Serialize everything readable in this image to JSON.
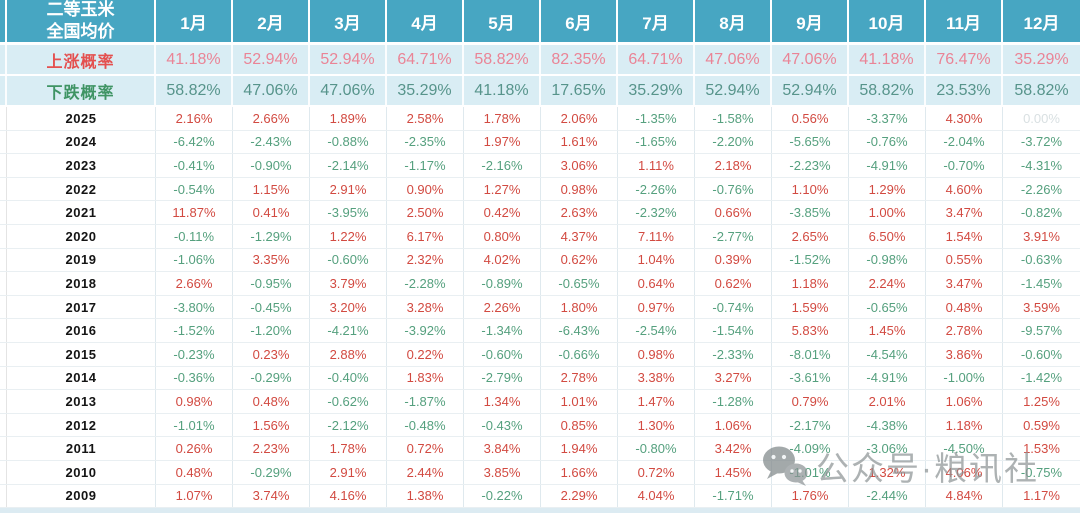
{
  "table": {
    "corner_line1": "二等玉米",
    "corner_line2": "全国均价",
    "rise_label": "上涨概率",
    "fall_label": "下跌概率"
  },
  "watermark": {
    "icon": "wechat-icon",
    "text": "公众号·粮讯社"
  },
  "colors": {
    "header_bg": "#47a6c2",
    "prob_bg": "#d9edf4",
    "rise_label": "#e4504f",
    "rise_value": "#ea8496",
    "fall_label": "#3f9464",
    "fall_value": "#57948b",
    "positive": "#d24a41",
    "negative": "#55a07e",
    "zero_faded": "#d9e0e2"
  },
  "chart_data": {
    "type": "table",
    "columns": [
      "1月",
      "2月",
      "3月",
      "4月",
      "5月",
      "6月",
      "7月",
      "8月",
      "9月",
      "10月",
      "11月",
      "12月"
    ],
    "rise_probability": [
      41.18,
      52.94,
      52.94,
      64.71,
      58.82,
      82.35,
      64.71,
      47.06,
      47.06,
      41.18,
      76.47,
      35.29
    ],
    "fall_probability": [
      58.82,
      47.06,
      47.06,
      35.29,
      41.18,
      17.65,
      35.29,
      52.94,
      52.94,
      58.82,
      23.53,
      58.82
    ],
    "unit": "%",
    "years": [
      {
        "year": "2025",
        "values": [
          2.16,
          2.66,
          1.89,
          2.58,
          1.78,
          2.06,
          -1.35,
          -1.58,
          0.56,
          -3.37,
          4.3,
          0.0
        ]
      },
      {
        "year": "2024",
        "values": [
          -6.42,
          -2.43,
          -0.88,
          -2.35,
          1.97,
          1.61,
          -1.65,
          -2.2,
          -5.65,
          -0.76,
          -2.04,
          -3.72
        ]
      },
      {
        "year": "2023",
        "values": [
          -0.41,
          -0.9,
          -2.14,
          -1.17,
          -2.16,
          3.06,
          1.11,
          2.18,
          -2.23,
          -4.91,
          -0.7,
          -4.31
        ]
      },
      {
        "year": "2022",
        "values": [
          -0.54,
          1.15,
          2.91,
          0.9,
          1.27,
          0.98,
          -2.26,
          -0.76,
          1.1,
          1.29,
          4.6,
          -2.26
        ]
      },
      {
        "year": "2021",
        "values": [
          11.87,
          0.41,
          -3.95,
          2.5,
          0.42,
          2.63,
          -2.32,
          0.66,
          -3.85,
          1.0,
          3.47,
          -0.82
        ]
      },
      {
        "year": "2020",
        "values": [
          -0.11,
          -1.29,
          1.22,
          6.17,
          0.8,
          4.37,
          7.11,
          -2.77,
          2.65,
          6.5,
          1.54,
          3.91
        ]
      },
      {
        "year": "2019",
        "values": [
          -1.06,
          3.35,
          -0.6,
          2.32,
          4.02,
          0.62,
          1.04,
          0.39,
          -1.52,
          -0.98,
          0.55,
          -0.63
        ]
      },
      {
        "year": "2018",
        "values": [
          2.66,
          -0.95,
          3.79,
          -2.28,
          -0.89,
          -0.65,
          0.64,
          0.62,
          1.18,
          2.24,
          3.47,
          -1.45
        ]
      },
      {
        "year": "2017",
        "values": [
          -3.8,
          -0.45,
          3.2,
          3.28,
          2.26,
          1.8,
          0.97,
          -0.74,
          1.59,
          -0.65,
          0.48,
          3.59
        ]
      },
      {
        "year": "2016",
        "values": [
          -1.52,
          -1.2,
          -4.21,
          -3.92,
          -1.34,
          -6.43,
          -2.54,
          -1.54,
          5.83,
          1.45,
          2.78,
          -9.57
        ]
      },
      {
        "year": "2015",
        "values": [
          -0.23,
          0.23,
          2.88,
          0.22,
          -0.6,
          -0.66,
          0.98,
          -2.33,
          -8.01,
          -4.54,
          3.86,
          -0.6
        ]
      },
      {
        "year": "2014",
        "values": [
          -0.36,
          -0.29,
          -0.4,
          1.83,
          -2.79,
          2.78,
          3.38,
          3.27,
          -3.61,
          -4.91,
          -1.0,
          -1.42
        ]
      },
      {
        "year": "2013",
        "values": [
          0.98,
          0.48,
          -0.62,
          -1.87,
          1.34,
          1.01,
          1.47,
          -1.28,
          0.79,
          2.01,
          1.06,
          1.25
        ]
      },
      {
        "year": "2012",
        "values": [
          -1.01,
          1.56,
          -2.12,
          -0.48,
          -0.43,
          0.85,
          1.3,
          1.06,
          -2.17,
          -4.38,
          1.18,
          0.59
        ]
      },
      {
        "year": "2011",
        "values": [
          0.26,
          2.23,
          1.78,
          0.72,
          3.84,
          1.94,
          -0.8,
          3.42,
          -4.09,
          -3.06,
          -4.5,
          1.53
        ]
      },
      {
        "year": "2010",
        "values": [
          0.48,
          -0.29,
          2.91,
          2.44,
          3.85,
          1.66,
          0.72,
          1.45,
          -1.01,
          1.32,
          4.06,
          -0.75
        ]
      },
      {
        "year": "2009",
        "values": [
          1.07,
          3.74,
          4.16,
          1.38,
          -0.22,
          2.29,
          4.04,
          -1.71,
          1.76,
          -2.44,
          4.84,
          1.17
        ]
      }
    ]
  }
}
